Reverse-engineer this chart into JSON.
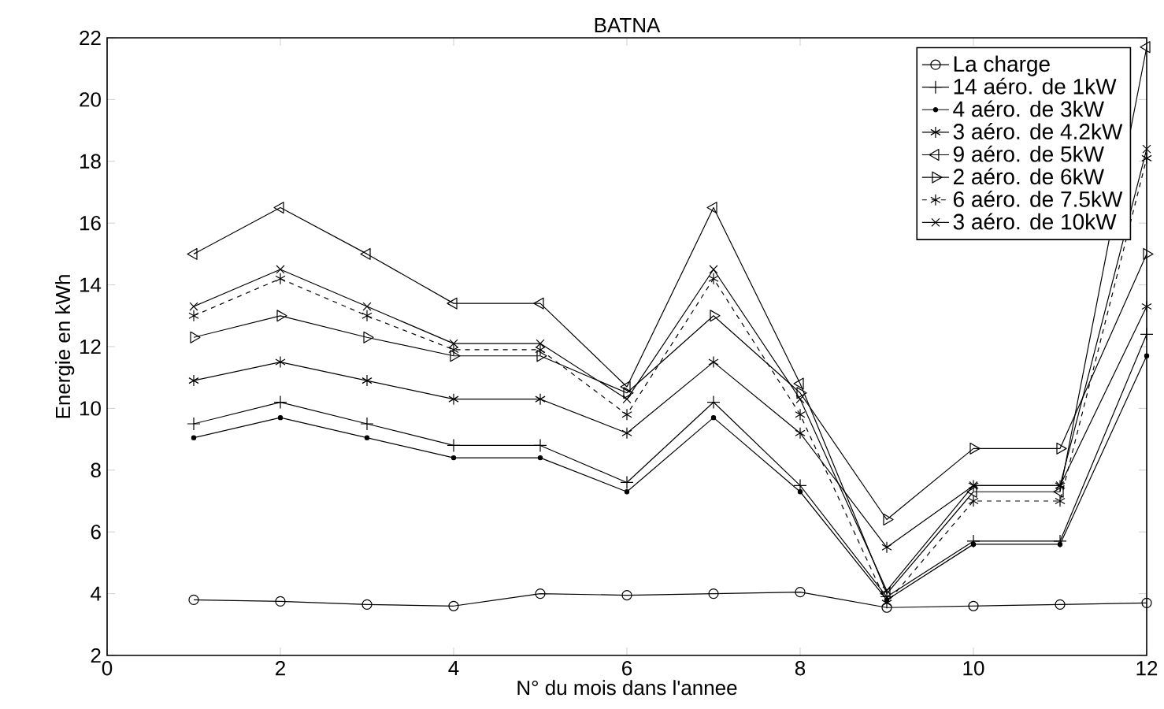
{
  "chart_data": {
    "type": "line",
    "title": "BATNA",
    "xlabel": "N° du mois dans l'annee",
    "ylabel": "Energie en kWh",
    "x": [
      1,
      2,
      3,
      4,
      5,
      6,
      7,
      8,
      9,
      10,
      11,
      12
    ],
    "xlim": [
      0,
      12
    ],
    "xticks": [
      0,
      2,
      4,
      6,
      8,
      10,
      12
    ],
    "ylim": [
      2,
      22
    ],
    "yticks": [
      2,
      4,
      6,
      8,
      10,
      12,
      14,
      16,
      18,
      20,
      22
    ],
    "grid": false,
    "legend": "top right",
    "line_style": "solid",
    "series": [
      {
        "name": "La charge",
        "color": "#000000",
        "marker": "circle",
        "values": [
          3.8,
          3.75,
          3.65,
          3.6,
          4.0,
          3.95,
          4.0,
          4.05,
          3.55,
          3.6,
          3.65,
          3.7
        ]
      },
      {
        "name": "14 aéro. de 1kW",
        "color": "#000000",
        "marker": "plus",
        "values": [
          9.5,
          10.2,
          9.5,
          8.8,
          8.8,
          7.6,
          10.2,
          7.5,
          3.9,
          5.7,
          5.7,
          12.4
        ]
      },
      {
        "name": "4 aéro. de 3kW",
        "color": "#000000",
        "marker": "dot",
        "values": [
          9.05,
          9.7,
          9.05,
          8.4,
          8.4,
          7.3,
          9.7,
          7.3,
          3.8,
          5.6,
          5.6,
          11.7
        ]
      },
      {
        "name": "3 aéro. de 4.2kW",
        "color": "#000000",
        "marker": "cross",
        "values": [
          10.9,
          11.5,
          10.9,
          10.3,
          10.3,
          9.2,
          11.5,
          9.2,
          5.5,
          7.5,
          7.5,
          13.3
        ]
      },
      {
        "name": "9 aéro. de 5kW",
        "color": "#000000",
        "marker": "triangle-left",
        "values": [
          15.0,
          16.5,
          15.0,
          13.4,
          13.4,
          10.7,
          16.5,
          10.8,
          4.0,
          7.3,
          7.3,
          21.7
        ]
      },
      {
        "name": "2 aéro. de 6kW",
        "color": "#000000",
        "marker": "triangle-right",
        "values": [
          12.3,
          13.0,
          12.3,
          11.7,
          11.7,
          10.5,
          13.0,
          10.5,
          6.4,
          8.7,
          8.7,
          15.0
        ]
      },
      {
        "name": "6 aéro. de 7.5kW",
        "color": "#000000",
        "marker": "cross",
        "line_style": "dashed",
        "values": [
          13.0,
          14.2,
          13.0,
          11.9,
          11.9,
          9.8,
          14.2,
          9.8,
          3.7,
          7.0,
          7.0,
          18.1
        ]
      },
      {
        "name": "3 aéro. de 10kW",
        "color": "#000000",
        "marker": "x",
        "values": [
          13.3,
          14.5,
          13.3,
          12.1,
          12.1,
          10.3,
          14.5,
          10.3,
          4.1,
          7.5,
          7.5,
          18.4
        ]
      }
    ]
  }
}
